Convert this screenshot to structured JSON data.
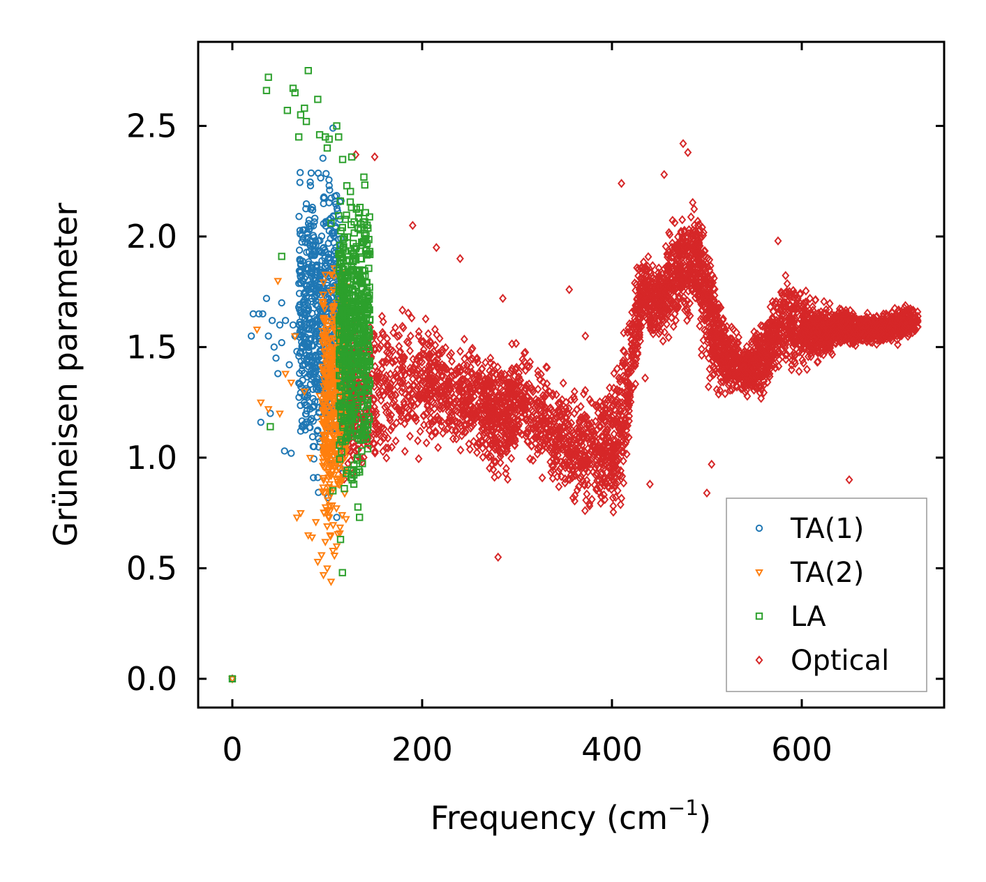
{
  "chart_data": {
    "type": "scatter",
    "title": "",
    "xlabel": "Frequency (cm",
    "xlabel_sup": "−1",
    "xlabel_close": ")",
    "ylabel": "Grüneisen parameter",
    "xlim": [
      -36,
      750
    ],
    "ylim": [
      -0.13,
      2.88
    ],
    "x_ticks": [
      0,
      200,
      400,
      600
    ],
    "x_tick_labels": [
      "0",
      "200",
      "400",
      "600"
    ],
    "y_ticks": [
      0.0,
      0.5,
      1.0,
      1.5,
      2.0,
      2.5
    ],
    "y_tick_labels": [
      "0.0",
      "0.5",
      "1.0",
      "1.5",
      "2.0",
      "2.5"
    ],
    "grid": false,
    "legend_position": "lower-right",
    "series": [
      {
        "name": "TA(1)",
        "marker": "circle",
        "color": "#1f77b4",
        "points": [
          [
            0,
            0
          ],
          [
            20,
            1.55
          ],
          [
            22,
            1.65
          ],
          [
            28,
            1.65
          ],
          [
            30,
            1.16
          ],
          [
            32,
            1.65
          ],
          [
            36,
            1.72
          ],
          [
            38,
            1.55
          ],
          [
            40,
            1.2
          ],
          [
            42,
            1.62
          ],
          [
            44,
            1.5
          ],
          [
            46,
            1.45
          ],
          [
            48,
            1.38
          ],
          [
            50,
            1.6
          ],
          [
            52,
            1.52
          ],
          [
            52,
            1.7
          ],
          [
            55,
            1.03
          ],
          [
            56,
            1.62
          ],
          [
            60,
            1.42
          ],
          [
            62,
            1.02
          ],
          [
            64,
            1.6
          ],
          [
            66,
            1.55
          ],
          [
            68,
            1.48
          ],
          [
            70,
            1.68
          ],
          [
            72,
            1.12
          ],
          [
            74,
            1.35
          ],
          [
            78,
            1.73
          ],
          [
            80,
            1.58
          ],
          [
            82,
            1.22
          ],
          [
            84,
            1.44
          ],
          [
            86,
            1.05
          ],
          [
            88,
            1.76
          ],
          [
            90,
            0.91
          ],
          [
            92,
            1.64
          ],
          [
            94,
            1.31
          ],
          [
            95,
            1.84
          ],
          [
            96,
            1.5
          ],
          [
            98,
            1.88
          ],
          [
            100,
            1.41
          ],
          [
            101,
            0.82
          ],
          [
            102,
            2.23
          ],
          [
            104,
            1.12
          ],
          [
            106,
            2.49
          ],
          [
            108,
            1.2
          ],
          [
            110,
            0.73
          ]
        ],
        "cluster": {
          "x_range": [
            70,
            115
          ],
          "y_range": [
            0.85,
            2.45
          ],
          "count": 650
        }
      },
      {
        "name": "TA(2)",
        "marker": "triangle-down",
        "color": "#ff7f0e",
        "points": [
          [
            0,
            0
          ],
          [
            26,
            1.58
          ],
          [
            30,
            1.25
          ],
          [
            38,
            1.22
          ],
          [
            48,
            1.8
          ],
          [
            50,
            1.2
          ],
          [
            56,
            1.38
          ],
          [
            62,
            1.34
          ],
          [
            66,
            1.55
          ],
          [
            68,
            0.73
          ],
          [
            72,
            0.75
          ],
          [
            76,
            1.3
          ],
          [
            80,
            0.65
          ],
          [
            82,
            1.0
          ],
          [
            84,
            0.64
          ],
          [
            88,
            0.71
          ],
          [
            90,
            0.53
          ],
          [
            92,
            1.28
          ],
          [
            94,
            0.56
          ],
          [
            96,
            0.47
          ],
          [
            98,
            0.62
          ],
          [
            100,
            0.5
          ],
          [
            102,
            0.73
          ],
          [
            104,
            0.44
          ],
          [
            106,
            0.58
          ],
          [
            108,
            1.1
          ],
          [
            110,
            0.6
          ],
          [
            112,
            1.45
          ],
          [
            114,
            1.8
          ]
        ],
        "cluster": {
          "x_range": [
            95,
            120
          ],
          "y_range": [
            0.55,
            1.95
          ],
          "count": 450
        }
      },
      {
        "name": "LA",
        "marker": "square",
        "color": "#2ca02c",
        "points": [
          [
            0,
            0
          ],
          [
            36,
            2.66
          ],
          [
            38,
            2.72
          ],
          [
            40,
            1.14
          ],
          [
            52,
            1.91
          ],
          [
            58,
            2.57
          ],
          [
            64,
            2.67
          ],
          [
            66,
            2.65
          ],
          [
            70,
            2.45
          ],
          [
            72,
            2.55
          ],
          [
            76,
            2.58
          ],
          [
            78,
            2.52
          ],
          [
            80,
            2.75
          ],
          [
            90,
            2.62
          ],
          [
            92,
            2.46
          ],
          [
            98,
            2.45
          ],
          [
            100,
            2.4
          ],
          [
            102,
            2.44
          ],
          [
            104,
            2.06
          ],
          [
            106,
            0.85
          ],
          [
            110,
            2.5
          ],
          [
            112,
            2.45
          ],
          [
            114,
            0.63
          ],
          [
            116,
            0.48
          ],
          [
            118,
            0.86
          ],
          [
            128,
            0.88
          ],
          [
            134,
            0.73
          ]
        ],
        "cluster": {
          "x_range": [
            112,
            145
          ],
          "y_range": [
            0.8,
            2.35
          ],
          "count": 600
        }
      },
      {
        "name": "Optical",
        "marker": "diamond",
        "color": "#d62728",
        "cluster_path": [
          [
            115,
            1.25,
            0.38
          ],
          [
            130,
            1.3,
            0.42
          ],
          [
            160,
            1.3,
            0.4
          ],
          [
            200,
            1.35,
            0.36
          ],
          [
            230,
            1.3,
            0.3
          ],
          [
            260,
            1.25,
            0.32
          ],
          [
            280,
            1.18,
            0.35
          ],
          [
            300,
            1.25,
            0.3
          ],
          [
            330,
            1.15,
            0.3
          ],
          [
            360,
            1.05,
            0.3
          ],
          [
            390,
            1.05,
            0.3
          ],
          [
            410,
            1.1,
            0.4
          ],
          [
            430,
            1.75,
            0.22
          ],
          [
            450,
            1.7,
            0.2
          ],
          [
            470,
            1.85,
            0.3
          ],
          [
            490,
            1.9,
            0.35
          ],
          [
            505,
            1.6,
            0.3
          ],
          [
            520,
            1.45,
            0.2
          ],
          [
            540,
            1.4,
            0.15
          ],
          [
            560,
            1.45,
            0.2
          ],
          [
            580,
            1.6,
            0.25
          ],
          [
            600,
            1.6,
            0.25
          ],
          [
            620,
            1.55,
            0.15
          ],
          [
            640,
            1.6,
            0.1
          ],
          [
            660,
            1.58,
            0.08
          ],
          [
            680,
            1.58,
            0.08
          ],
          [
            700,
            1.6,
            0.08
          ],
          [
            720,
            1.62,
            0.08
          ]
        ],
        "cluster_count": 4800,
        "points": [
          [
            0,
            0
          ],
          [
            130,
            2.37
          ],
          [
            150,
            2.36
          ],
          [
            190,
            2.05
          ],
          [
            215,
            1.95
          ],
          [
            240,
            1.9
          ],
          [
            280,
            0.55
          ],
          [
            285,
            1.72
          ],
          [
            355,
            1.76
          ],
          [
            372,
            1.55
          ],
          [
            410,
            2.24
          ],
          [
            435,
            1.36
          ],
          [
            440,
            0.88
          ],
          [
            455,
            2.28
          ],
          [
            475,
            2.42
          ],
          [
            480,
            2.38
          ],
          [
            500,
            0.84
          ],
          [
            505,
            0.97
          ],
          [
            575,
            1.98
          ],
          [
            650,
            0.9
          ]
        ]
      }
    ]
  }
}
